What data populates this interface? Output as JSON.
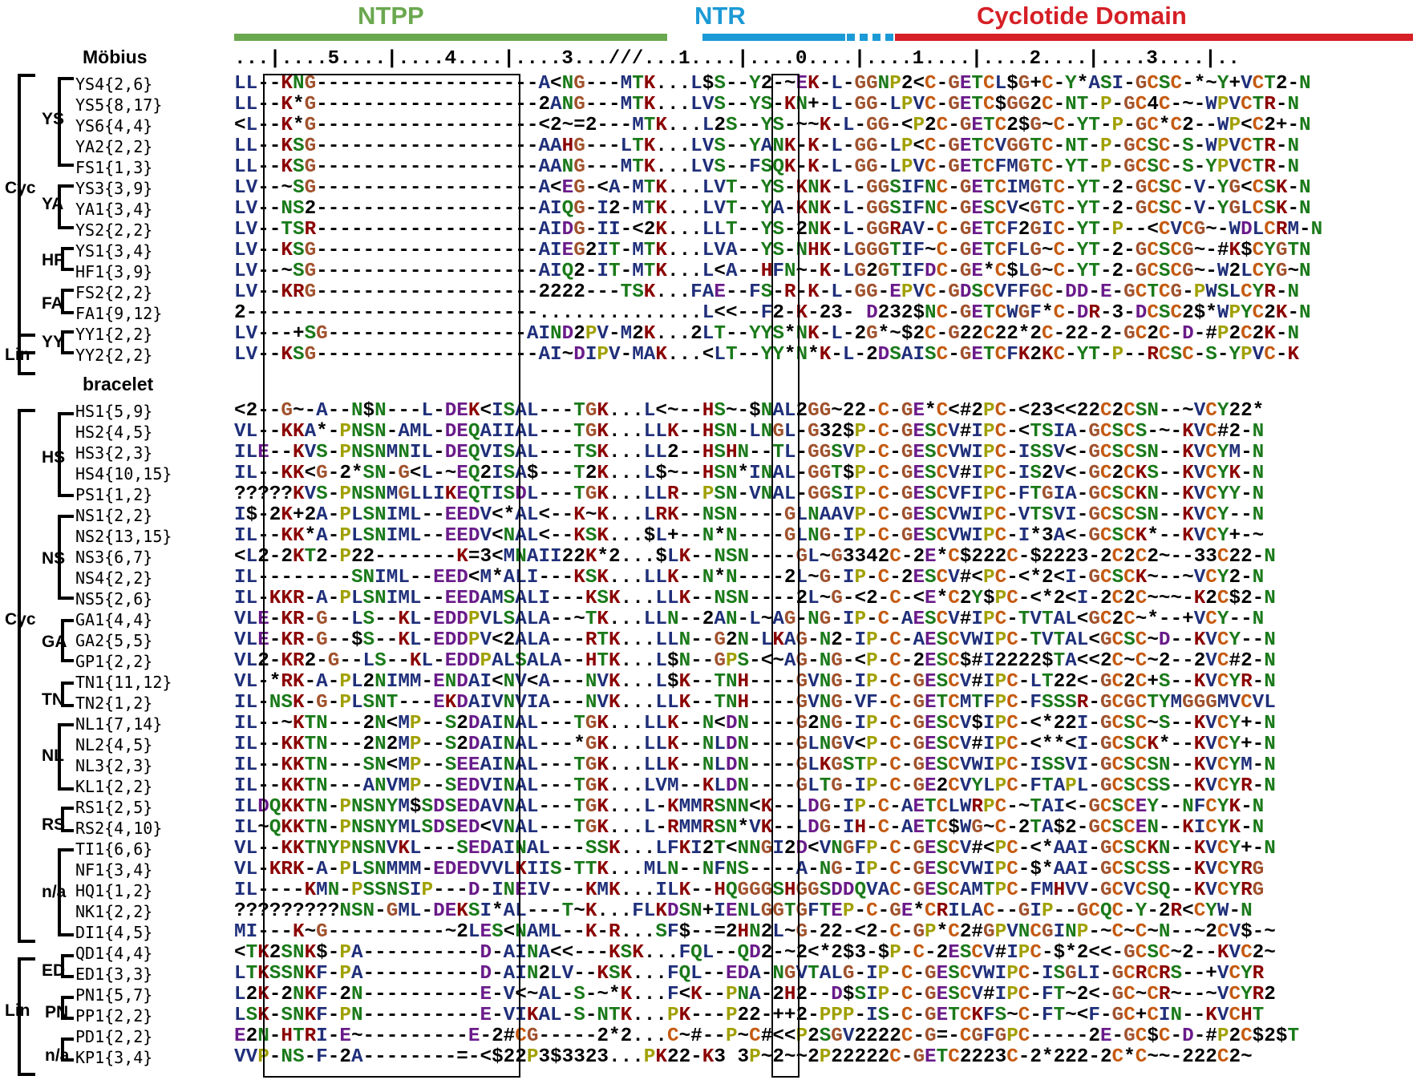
{
  "domains": [
    {
      "label": "NTPP",
      "color": "#6aa84f"
    },
    {
      "label": "NTR",
      "color": "#1c9ad6"
    },
    {
      "label": "Cyclotide Domain",
      "color": "#d61f26"
    }
  ],
  "ruler": "...|....5....|....4....|....3...///...1....|....0....|....1....|....2....|....3....|..",
  "sections": [
    {
      "title": "Möbius",
      "rows": [
        {
          "label": "YS4{2,6}",
          "seq": "LL--KNG-------------------A<NG---MTK...L$S--Y2-~EK-L-GGNP2<C-GETCL$G+C-Y*ASI-GCSC-*~Y+VCT2-N"
        },
        {
          "label": "YS5{8,17}",
          "seq": "LL--K*G-------------------2ANG---MTK...LVS--YS-KN+-L-GG-LPVC-GETC$GG2C-NT-P-GC4C-~-WPVCTR-N"
        },
        {
          "label": "YS6{4,4}",
          "seq": "<L--K*G-------------------<2~=2---MTK...L2S--YS-~~K-L-GG-<P2C-GETC2$G~C-YT-P-GC*C2--WP<C2+-N"
        },
        {
          "label": "YA2{2,2}",
          "seq": "LL--KSG-------------------AAHG---LTK...LVS--YANK-K-L-GG-LP<C-GETCVGGTC-NT-P-GCSC-S-WPVCTR-N"
        },
        {
          "label": "FS1{1,3}",
          "seq": "LL--KSG-------------------AANG---MTK...LVS--FSQK-K-L-GG-LPVC-GETCFMGTC-YT-P-GCSC-S-YPVCTR-N"
        },
        {
          "label": "YS3{3,9}",
          "seq": "LV--~SG-------------------A<EG-<A-MTK...LVT--YS-KNK-L-GGSIFNC-GETCIMGTC-YT-2-GCSC-V-YG<CSK-N"
        },
        {
          "label": "YA1{3,4}",
          "seq": "LV--NS2-------------------AIQG-I2-MTK...LVT--YA-KNK-L-GGSIFNC-GESCV<GTC-YT-2-GCSC-V-YGLCSK-N"
        },
        {
          "label": "YS2{2,2}",
          "seq": "LV--TSR-------------------AIDG-II-<2K...LLT--YS-2NK-L-GGRAV-C-GETCF2GIC-YT-P--<CVCG~-WDLCRM-N"
        },
        {
          "label": "YS1{3,4}",
          "seq": "LV--KSG-------------------AIEG2IT-MTK...LVA--YS-NHK-LGGGTIF~C-GETCFLG~C-YT-2-GCSCG~-#K$CYGTN"
        },
        {
          "label": "HF1{3,9}",
          "seq": "LV--~SG-------------------AIQ2-IT-MTK...L<A--HFN~-K-LG2GTIFDC-GE*C$LG~C-YT-2-GCSCG~-W2LCYG~N"
        },
        {
          "label": "FS2{2,2}",
          "seq": "LV--KRG-------------------2222---TSK...FAE--FS-R-K-L-GG-EPVC-GDSCVFFGC-DD-E-GCTCG-PWSLCYR-N"
        },
        {
          "label": "FA1{9,12}",
          "seq": "2-------------------------..............L<<--F2-K-23- D232$NC-GETCWGF*C-DR-3-DCSC2$*WPYC2K-N"
        },
        {
          "label": "YY1{2,2}",
          "seq": "LV---+SG-----------------AIND2PV-M2K...2LT--YYS*NK-L-2G*~$2C-G22C22*2C-22-2-GC2C-D-#P2C2K-N"
        },
        {
          "label": "YY2{2,2}",
          "seq": "LV--KSG-------------------AI~DIPV-MAK...<LT--YY*N*K-L-2DSAISC-GETCFK2KC-YT-P--RCSC-S-YPVC-K"
        }
      ]
    },
    {
      "title": "bracelet",
      "rows": [
        {
          "label": "HS1{5,9}",
          "seq": "<2--G~-A--N$N---L-DEK<ISAL---TGK...L<~--HS~-$NAL2GG~22-C-GE*C<#2PC-<23<<22C2CSN--~VCY22*"
        },
        {
          "label": "HS2{4,5}",
          "seq": "VL--KKA*-PNSN-AML-DEQAIIAL---TGK...LLK--HSN-LNGL-G32$P-C-GESCV#IPC-<TSIA-GCSCS-~-KVC#2-N"
        },
        {
          "label": "HS3{2,3}",
          "seq": "ILE--KVS-PNSNMNIL-DEQVISAL---TSK...LL2--HSHN--TL-GGSVP-C-GESCVWIPC-ISSV<-GCSCSN--KVCYM-N"
        },
        {
          "label": "HS4{10,15}",
          "seq": "IL--KK<G-2*SN-G<L-~EQ2ISA$---T2K...L$~--HSN*INAL-GGT$P-C-GESCV#IPC-IS2V<-GC2CKS--KVCYK-N"
        },
        {
          "label": "PS1{1,2}",
          "seq": "?????KVS-PNSNMGLLIKEQTISDL---TGK...LLR--PSN-VNAL-GGSIP-C-GESCVFIPC-FTGIA-GCSCKN--KVCYY-N"
        },
        {
          "label": "NS1{2,2}",
          "seq": "I$-2K+2A-PLSNIML--EEDV<*AL<--K~K...LRK--NSN----GLNAAVP-C-GESCVWIPC-VTSVI-GCSCSN--KVCY--N"
        },
        {
          "label": "NS2{13,15}",
          "seq": "IL--KK*A-PLSNIML--EEDV<NAL<--KSK...$L+--N*N----GLNG-IP-C-GESCVWIPC-I*3A<-GCSCK*--KVCY+-~"
        },
        {
          "label": "NS3{6,7}",
          "seq": "<L2-2KT2-P22-------K=3<MNAII22K*2...$LK--NSN----GL~G3342C-2E*C$222C-$2223-2C2C2~--33C22-N"
        },
        {
          "label": "NS4{2,2}",
          "seq": "IL--------SNIML--EED<M*ALI---KSK...LLK--N*N----2L~G-IP-C-2ESCV#<PC-<*2<I-GCSCK~--~VCY2-N"
        },
        {
          "label": "NS5{2,6}",
          "seq": "IL-KKR-A-PLSNIML--EEDAMSALI---KSK...LLK--NSN----2L~G-<2-C-<E*C2Y$PC-<*2<I-2C2C~~~-K2C$2-N"
        },
        {
          "label": "GA1{4,4}",
          "seq": "VLE-KR-G--LS--KL-EDDPVLSALA--~TK...LLN--2AN-L~AG-NG-IP-C-AESCV#IPC-TVTAL<GC2C~*--+VCY--N"
        },
        {
          "label": "GA2{5,5}",
          "seq": "VLE-KR-G--$S--KL-EDDPV<2ALA---RTK...LLN--G2N-LKAG-N2-IP-C-AESCVWIPC-TVTAL<GCSC~D--KVCY--N"
        },
        {
          "label": "GP1{2,2}",
          "seq": "VL2-KR2-G--LS--KL-EDDPALSALA--HTK...L$N--GPS-<~AG-NG-<P-C-2ESC$#I2222$TA<<2C~C~2--2VC#2-N"
        },
        {
          "label": "TN1{11,12}",
          "seq": "VL-*RK-A-PL2NIMM-ENDAI<NV<A---NVK...L$K--TNH----GVNG-IP-C-GESCV#IPC-LT22<-GC2C+S--KVCYR-N"
        },
        {
          "label": "TN2{1,2}",
          "seq": "IL-NSK-G-PLSNT---EKDAIVNVIA---NVK...LLK--TNH----GVNG-VF-C-GETCMTFPC-FSSSR-GCGCTYMGGGMVCVL"
        },
        {
          "label": "NL1{7,14}",
          "seq": "IL--~KTN---2N<MP--S2DAINAL---TGK...LLK--N<DN----G2NG-IP-C-GESCV$IPC-<*22I-GCSC~S--KVCY+-N"
        },
        {
          "label": "NL2{4,5}",
          "seq": "IL--KKTN---2N2MP--S2DAINAL---*GK...LLK--NLDN----GLNGV<P-C-GESCV#IPC-<**<I-GCSCK*--KVCY+-N"
        },
        {
          "label": "NL3{2,3}",
          "seq": "IL--KKTN---SN<MP--SEEAINAL---TGK...LLK--NLDN----GLKGSTP-C-GESCVWIPC-ISSVI-GCSCSN--KVCYM-N"
        },
        {
          "label": "KL1{2,2}",
          "seq": "IL--KKTN---ANVMP--SEDVINAL---TGK...LVM--KLDN----GLTG-IP-C-GE2CVYLPC-FTAPL-GCSCSS--KVCYR-N"
        },
        {
          "label": "RS1{2,5}",
          "seq": "ILDQKKTN-PNSNYM$SDSEDAVNAL---TGK...L-KMMRSNN<K--LDG-IP-C-AETCLWRPC-~TAI<-GCSCEY--NFCYK-N"
        },
        {
          "label": "RS2{4,10}",
          "seq": "IL~QKKTN-PNSNYMLSDSED<VNAL---TGK...L-RMMRSN*VK--LDG-IH-C-AETC$WG~C-2TA$2-GCSCEN--KICYK-N"
        },
        {
          "label": "TI1{6,6}",
          "seq": "VL--KKTNYPNSNVKL---SEDAINAL---SSK...LFKI2T<NNGI2D<VNGFP-C-GESCV#<PC-<*AAI-GCSCKN--KVCY+-N"
        },
        {
          "label": "NF1{3,4}",
          "seq": "VL-KRK-A-PLSNMMM-EDEDVVLKIIS-TTK...MLN--NFNS----A-NG-IP-C-GESCVWIPC-$*AAI-GCSCSS--KVCYRG"
        },
        {
          "label": "HQ1{1,2}",
          "seq": "IL----KMN-PSSNSIP---D-INEIV---KMK...ILK--HQGGGSHGGSDDQVAC-GESCAMTPC-FMHVV-GCVCSQ--KVCYRG"
        },
        {
          "label": "NK1{2,2}",
          "seq": "?????????NSN-GML-DEKSI*AL---T~K...FLKDSN+IENLGGTGFTEP-C-GE*CRILAC--GIP--GCQC-Y-2R<CYW-N"
        },
        {
          "label": "DI1{4,5}",
          "seq": "MI---K~G----------~2LES<NAML--K-R...SF$--=2HN2L~G-22-<2-C-GP*C2#GPVNCGINP-~C~C~N--~2CV$-~"
        },
        {
          "label": "QD1{4,4}",
          "seq": "<TK2SNK$-PA----------D-AINA<<---KSK...FQL--QD2-~2<*2$3-$P-C-2ESCV#IPC-$*2<<-GCSC~2--KVC2~"
        },
        {
          "label": "ED1{3,3}",
          "seq": "LTKSSNKF-PA----------D-AIN2LV--KSK...FQL--EDA-NGVTALG-IP-C-GESCVWIPC-ISGLI-GCRCRS--+VCYR"
        },
        {
          "label": "PN1{5,7}",
          "seq": "L2K-2NKF-2N----------E-V<~AL-S-~*K...F<K--PNA-2H2--D$SIP-C-GESCV#IPC-FT~2<-GC~CR~--~VCYR2"
        },
        {
          "label": "PP1{2,2}",
          "seq": "LSK-SNKF-PN----------E-VIKAL-S-NTK...PK---P22-++2-PPP-IS-C-GETCKFS~C-FT~<F-GC+CIN--KVCHT"
        },
        {
          "label": "PD1{2,2}",
          "seq": "E2N-HTRI-E~---------E-2#CG-----2*2...C~#--P~C#<<P2SGV2222C-G=-CGFGPC-----2E-GC$C-D-#P2C$2$T"
        },
        {
          "label": "KP1{3,4}",
          "seq": "VVP-NS-F-2A--------=-<$22P3$3323...PK22-K3 3P~2~~2P22222C-GETC2223C-2*222-2C*C~~-222C2~"
        }
      ]
    }
  ],
  "groups": [
    {
      "label": "YS"
    },
    {
      "label": "Cyc"
    },
    {
      "label": "YA"
    },
    {
      "label": "HF"
    },
    {
      "label": "FA"
    },
    {
      "label": "YY"
    },
    {
      "label": "Lin"
    },
    {
      "label": "HS"
    },
    {
      "label": "NS"
    },
    {
      "label": "Cyc"
    },
    {
      "label": "GA"
    },
    {
      "label": "TN"
    },
    {
      "label": "NL"
    },
    {
      "label": "RS"
    },
    {
      "label": "n/a"
    },
    {
      "label": "ED"
    },
    {
      "label": "Lin"
    },
    {
      "label": "PN"
    },
    {
      "label": "n/a"
    }
  ],
  "colors": {
    "default": "#1f2f7a",
    "G": "#a0522d",
    "K": "#8b0000",
    "R": "#8b0000",
    "H": "#8b0000",
    "S": "#1a7a1a",
    "T": "#1a7a1a",
    "N": "#1a7a1a",
    "Q": "#1a7a1a",
    "Y": "#1a7a1a",
    "D": "#6a1b8a",
    "E": "#6a1b8a",
    "P": "#a0a000",
    "C": "#c55a11",
    "sym": "#000000"
  }
}
